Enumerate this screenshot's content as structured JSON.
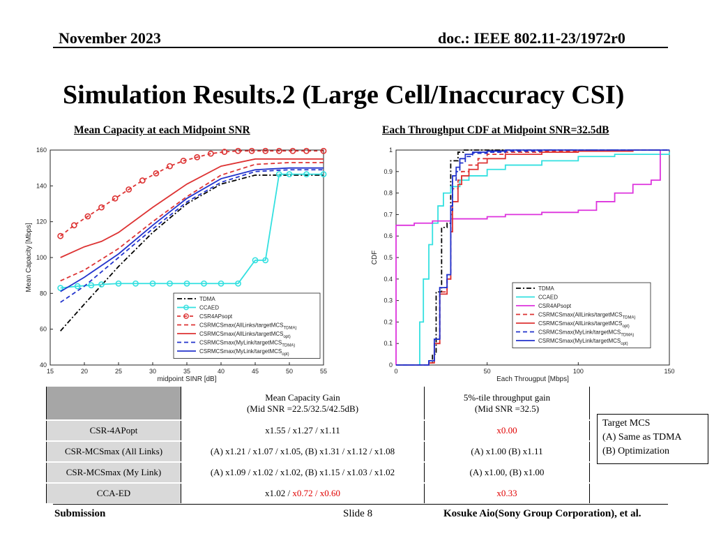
{
  "header": {
    "date": "November 2023",
    "doc": "doc.: IEEE 802.11-23/1972r0"
  },
  "title": "Simulation Results.2 (Large Cell/Inaccuracy CSI)",
  "subtitles": {
    "left": "Mean Capacity at each Midpoint SNR",
    "right": "Each Throughput CDF at Midpoint SNR=32.5dB"
  },
  "colors": {
    "tdma": "#000000",
    "ccaed": "#33e0e0",
    "csr4ap": "#dd3333",
    "csrmcs_all": "#dd3333",
    "csrmcs_my": "#2233cc",
    "csr4ap_cdf": "#dd33dd"
  },
  "chart_data": [
    {
      "type": "line",
      "title": "",
      "xlabel": "midpoint SINR [dB]",
      "ylabel": "Mean Capacity [Mbps]",
      "xlim": [
        15,
        55
      ],
      "ylim": [
        40,
        160
      ],
      "xticks": [
        "15",
        "20",
        "25",
        "30",
        "35",
        "40",
        "45",
        "50",
        "55"
      ],
      "yticks": [
        "40",
        "60",
        "80",
        "100",
        "120",
        "140",
        "160"
      ],
      "legend_position": "bottom-right",
      "series": [
        {
          "name": "TDMA",
          "style": "dashdot",
          "color": "#000000",
          "x": [
            16.5,
            20,
            25,
            30,
            35,
            40,
            45,
            48,
            55
          ],
          "y": [
            59,
            74,
            95,
            114,
            130,
            141,
            146,
            146,
            146
          ]
        },
        {
          "name": "CCAED",
          "style": "solid-marker",
          "color": "#33e0e0",
          "x": [
            16.5,
            19,
            21,
            22.5,
            25,
            27.5,
            30,
            32.5,
            35,
            37.5,
            40,
            42.5,
            45,
            46.5,
            48.5,
            50,
            52.5,
            55
          ],
          "y": [
            83,
            84,
            84.5,
            85,
            85.5,
            85.5,
            85.5,
            85.5,
            85.5,
            85.5,
            85.5,
            85.5,
            98.5,
            98.5,
            146.5,
            146.5,
            146.5,
            146.5
          ]
        },
        {
          "name": "CSR4APsopt",
          "style": "dashed-marker",
          "color": "#dd3333",
          "x": [
            16.5,
            18.5,
            20.5,
            22.5,
            24.5,
            26.5,
            28.5,
            30.5,
            32.5,
            34.5,
            36.5,
            38.5,
            40.5,
            42.5,
            44.5,
            46.5,
            48.5,
            50.5,
            52.5,
            55
          ],
          "y": [
            112,
            118,
            123,
            128,
            133,
            138,
            143,
            147,
            151,
            154,
            156,
            158,
            159,
            159.5,
            159.5,
            159.5,
            159.5,
            159.5,
            159.5,
            159.5
          ]
        },
        {
          "name": "CSRMCSmax(AllLinks/targetMCS_TDMA)",
          "style": "dashed",
          "color": "#dd3333",
          "x": [
            16.5,
            20,
            25,
            30,
            35,
            40,
            45,
            50,
            55
          ],
          "y": [
            87,
            93,
            105,
            120,
            134,
            146,
            152,
            153,
            153
          ]
        },
        {
          "name": "CSRMCSmax(AllLinks/targetMCS_opt)",
          "style": "solid",
          "color": "#dd3333",
          "x": [
            16.5,
            20,
            22.5,
            25,
            30,
            35,
            40,
            45,
            50,
            55
          ],
          "y": [
            100,
            106,
            109,
            114,
            128,
            141,
            151,
            155,
            155,
            155
          ]
        },
        {
          "name": "CSRMCSmax(MyLink/targetMCS_TDMA)",
          "style": "dashed",
          "color": "#2233cc",
          "x": [
            16.5,
            20,
            25,
            30,
            35,
            40,
            45,
            50,
            55
          ],
          "y": [
            75,
            84,
            100,
            116,
            131,
            142,
            148,
            149,
            149
          ]
        },
        {
          "name": "CSRMCSmax(MyLink/targetMCS_opt)",
          "style": "solid",
          "color": "#2233cc",
          "x": [
            16.5,
            20,
            25,
            30,
            35,
            40,
            45,
            50,
            55
          ],
          "y": [
            81,
            89,
            102,
            118,
            133,
            144,
            149,
            150,
            150
          ]
        }
      ]
    },
    {
      "type": "line",
      "title": "",
      "xlabel": "Each Througput [Mbps]",
      "ylabel": "CDF",
      "xlim": [
        0,
        150
      ],
      "ylim": [
        0,
        1
      ],
      "xticks": [
        "0",
        "50",
        "100",
        "150"
      ],
      "yticks": [
        "0",
        "0.1",
        "0.2",
        "0.3",
        "0.4",
        "0.5",
        "0.6",
        "0.7",
        "0.8",
        "0.9",
        "1"
      ],
      "legend_position": "bottom-right",
      "series": [
        {
          "name": "TDMA",
          "style": "dashdot",
          "color": "#000000",
          "x": [
            0,
            18,
            18,
            20,
            22,
            25,
            25,
            28,
            30,
            30,
            34,
            34,
            37,
            37,
            150
          ],
          "y": [
            0,
            0,
            0.01,
            0.05,
            0.34,
            0.38,
            0.64,
            0.66,
            0.66,
            0.95,
            0.95,
            0.99,
            0.99,
            1.0,
            1.0
          ]
        },
        {
          "name": "CCAED",
          "style": "solid",
          "color": "#33e0e0",
          "x": [
            0,
            13,
            13,
            15,
            18,
            20,
            23,
            26,
            30,
            35,
            40,
            50,
            60,
            80,
            100,
            120,
            150
          ],
          "y": [
            0,
            0,
            0.2,
            0.4,
            0.56,
            0.66,
            0.74,
            0.8,
            0.83,
            0.86,
            0.88,
            0.91,
            0.93,
            0.95,
            0.97,
            0.98,
            0.99
          ]
        },
        {
          "name": "CSR4APsopt",
          "style": "solid",
          "color": "#dd33dd",
          "x": [
            0,
            0,
            10,
            20,
            30,
            40,
            50,
            60,
            80,
            100,
            110,
            120,
            130,
            140,
            145,
            145
          ],
          "y": [
            0,
            0.65,
            0.66,
            0.67,
            0.68,
            0.68,
            0.69,
            0.7,
            0.71,
            0.72,
            0.76,
            0.8,
            0.84,
            0.86,
            0.86,
            1.0
          ]
        },
        {
          "name": "CSRMCSmax(AllLinks/targetMCS_TDMA)",
          "style": "dashed",
          "color": "#dd3333",
          "x": [
            0,
            18,
            18,
            21,
            24,
            28,
            30,
            31,
            34,
            36,
            40,
            45,
            50,
            60,
            80,
            100,
            130,
            150
          ],
          "y": [
            0,
            0,
            0.01,
            0.1,
            0.34,
            0.4,
            0.7,
            0.82,
            0.86,
            0.9,
            0.93,
            0.96,
            0.98,
            0.99,
            0.995,
            1.0,
            1.0,
            1.0
          ]
        },
        {
          "name": "CSRMCSmax(AllLinks/targetMCS_opt)",
          "style": "solid",
          "color": "#dd3333",
          "x": [
            0,
            18,
            18,
            21,
            24,
            28,
            30,
            31,
            34,
            36,
            40,
            45,
            50,
            60,
            80,
            100,
            130,
            145
          ],
          "y": [
            0,
            0,
            0.01,
            0.1,
            0.33,
            0.4,
            0.62,
            0.76,
            0.84,
            0.88,
            0.91,
            0.94,
            0.96,
            0.98,
            0.99,
            0.995,
            1.0,
            1.0
          ]
        },
        {
          "name": "CSRMCSmax(MyLink/targetMCS_TDMA)",
          "style": "dashed",
          "color": "#2233cc",
          "x": [
            0,
            18,
            18,
            21,
            24,
            28,
            30,
            31,
            33,
            35,
            38,
            42,
            50,
            60,
            80,
            100,
            150
          ],
          "y": [
            0,
            0,
            0.02,
            0.12,
            0.36,
            0.42,
            0.72,
            0.86,
            0.9,
            0.94,
            0.97,
            0.985,
            0.99,
            0.995,
            1.0,
            1.0,
            1.0
          ]
        },
        {
          "name": "CSRMCSmax(MyLink/targetMCS_opt)",
          "style": "solid",
          "color": "#2233cc",
          "x": [
            0,
            18,
            18,
            21,
            24,
            28,
            30,
            31,
            33,
            35,
            38,
            42,
            50,
            60,
            80,
            100,
            150
          ],
          "y": [
            0,
            0,
            0.02,
            0.12,
            0.36,
            0.42,
            0.74,
            0.88,
            0.92,
            0.96,
            0.98,
            0.99,
            0.995,
            1.0,
            1.0,
            1.0,
            1.0
          ]
        }
      ]
    }
  ],
  "legend_left": [
    "TDMA",
    "CCAED",
    "CSR4APsopt",
    "CSRMCSmax(AllLinks/targetMCS",
    "CSRMCSmax(AllLinks/targetMCS",
    "CSRMCSmax(MyLink/targetMCS",
    "CSRMCSmax(MyLink/targetMCS"
  ],
  "legend_subs": [
    "TDMA)",
    "opt)",
    "TDMA)",
    "opt)"
  ],
  "table": {
    "header": {
      "col2_line1": "Mean Capacity Gain",
      "col2_line2": "(Mid SNR =22.5/32.5/42.5dB)",
      "col3_line1": "5%-tile throughput gain",
      "col3_line2": "(Mid SNR =32.5)"
    },
    "rows": [
      {
        "label": "CSR-4APopt",
        "gain": "x1.55 / x1.27 / x1.11",
        "tile": "x0.00"
      },
      {
        "label": "CSR-MCSmax (All Links)",
        "gain": "(A) x1.21 / x1.07 / x1.05,  (B) x1.31 / x1.12 / x1.08",
        "tile": "(A) x1.00  (B) x1.11"
      },
      {
        "label": "CSR-MCSmax (My Link)",
        "gain": "(A) x1.09 / x1.02 / x1.02,  (B) x1.15 / x1.03 / x1.02",
        "tile": "(A) x1.00,  (B) x1.00"
      },
      {
        "label": "CCA-ED",
        "gain_black": "x1.02 / ",
        "gain_red": "x0.72 / x0.60",
        "tile": "x0.33"
      }
    ]
  },
  "target_mcs": {
    "title": "Target MCS",
    "a": "(A)  Same as TDMA",
    "b": "(B)  Optimization"
  },
  "footer": {
    "left": "Submission",
    "mid": "Slide 8",
    "right": "Kosuke Aio(Sony Group Corporation), et al."
  }
}
